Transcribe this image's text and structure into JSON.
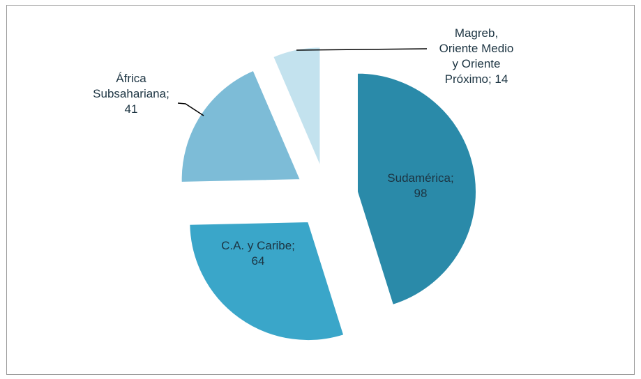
{
  "chart_data": {
    "type": "pie",
    "values": [
      98,
      64,
      41,
      14
    ],
    "value_labels": [
      "Sudamérica;\n98",
      "C.A. y Caribe;\n64",
      "África\nSubsahariana;\n41",
      "Magreb,\nOriente Medio\ny Oriente\nPróximo; 14"
    ],
    "colors": [
      "#2a8aa9",
      "#3aa6c9",
      "#7dbcd7",
      "#c3e2ee"
    ],
    "exploded": true
  }
}
